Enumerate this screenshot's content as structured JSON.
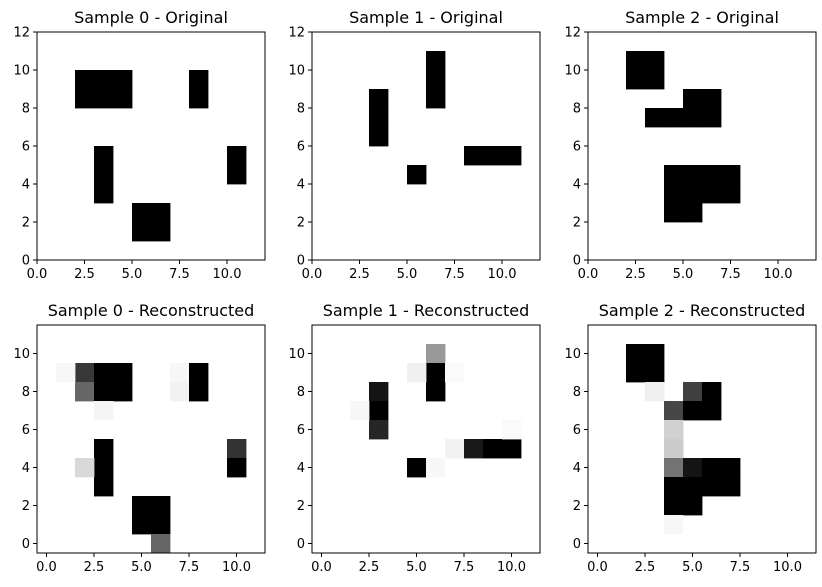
{
  "chart_data": [
    {
      "type": "heatmap",
      "title": "Sample 0 - Original",
      "xlim": [
        0,
        12
      ],
      "ylim": [
        0,
        12
      ],
      "xticks": [
        0,
        2.5,
        5,
        7.5,
        10
      ],
      "xtick_labels": [
        "0.0",
        "2.5",
        "5.0",
        "7.5",
        "10.0"
      ],
      "yticks": [
        0,
        2,
        4,
        6,
        8,
        10,
        12
      ],
      "ytick_labels": [
        "0",
        "2",
        "4",
        "6",
        "8",
        "10",
        "12"
      ],
      "grid": false,
      "cells": [
        {
          "x": 2,
          "y": 8,
          "v": 1
        },
        {
          "x": 2,
          "y": 9,
          "v": 1
        },
        {
          "x": 3,
          "y": 8,
          "v": 1
        },
        {
          "x": 3,
          "y": 9,
          "v": 1
        },
        {
          "x": 4,
          "y": 8,
          "v": 1
        },
        {
          "x": 4,
          "y": 9,
          "v": 1
        },
        {
          "x": 8,
          "y": 8,
          "v": 1
        },
        {
          "x": 8,
          "y": 9,
          "v": 1
        },
        {
          "x": 3,
          "y": 3,
          "v": 1
        },
        {
          "x": 3,
          "y": 4,
          "v": 1
        },
        {
          "x": 3,
          "y": 5,
          "v": 1
        },
        {
          "x": 10,
          "y": 4,
          "v": 1
        },
        {
          "x": 10,
          "y": 5,
          "v": 1
        },
        {
          "x": 5,
          "y": 1,
          "v": 1
        },
        {
          "x": 5,
          "y": 2,
          "v": 1
        },
        {
          "x": 6,
          "y": 1,
          "v": 1
        },
        {
          "x": 6,
          "y": 2,
          "v": 1
        }
      ]
    },
    {
      "type": "heatmap",
      "title": "Sample 1 - Original",
      "xlim": [
        0,
        12
      ],
      "ylim": [
        0,
        12
      ],
      "xticks": [
        0,
        2.5,
        5,
        7.5,
        10
      ],
      "xtick_labels": [
        "0.0",
        "2.5",
        "5.0",
        "7.5",
        "10.0"
      ],
      "yticks": [
        0,
        2,
        4,
        6,
        8,
        10,
        12
      ],
      "ytick_labels": [
        "0",
        "2",
        "4",
        "6",
        "8",
        "10",
        "12"
      ],
      "grid": false,
      "cells": [
        {
          "x": 6,
          "y": 8,
          "v": 1
        },
        {
          "x": 6,
          "y": 9,
          "v": 1
        },
        {
          "x": 6,
          "y": 10,
          "v": 1
        },
        {
          "x": 3,
          "y": 6,
          "v": 1
        },
        {
          "x": 3,
          "y": 7,
          "v": 1
        },
        {
          "x": 3,
          "y": 8,
          "v": 1
        },
        {
          "x": 8,
          "y": 5,
          "v": 1
        },
        {
          "x": 9,
          "y": 5,
          "v": 1
        },
        {
          "x": 10,
          "y": 5,
          "v": 1
        },
        {
          "x": 5,
          "y": 4,
          "v": 1
        }
      ]
    },
    {
      "type": "heatmap",
      "title": "Sample 2 - Original",
      "xlim": [
        0,
        12
      ],
      "ylim": [
        0,
        12
      ],
      "xticks": [
        0,
        2.5,
        5,
        7.5,
        10
      ],
      "xtick_labels": [
        "0.0",
        "2.5",
        "5.0",
        "7.5",
        "10.0"
      ],
      "yticks": [
        0,
        2,
        4,
        6,
        8,
        10,
        12
      ],
      "ytick_labels": [
        "0",
        "2",
        "4",
        "6",
        "8",
        "10",
        "12"
      ],
      "grid": false,
      "cells": [
        {
          "x": 2,
          "y": 9,
          "v": 1
        },
        {
          "x": 2,
          "y": 10,
          "v": 1
        },
        {
          "x": 3,
          "y": 9,
          "v": 1
        },
        {
          "x": 3,
          "y": 10,
          "v": 1
        },
        {
          "x": 3,
          "y": 7,
          "v": 1
        },
        {
          "x": 4,
          "y": 7,
          "v": 1
        },
        {
          "x": 5,
          "y": 7,
          "v": 1
        },
        {
          "x": 5,
          "y": 8,
          "v": 1
        },
        {
          "x": 6,
          "y": 7,
          "v": 1
        },
        {
          "x": 6,
          "y": 8,
          "v": 1
        },
        {
          "x": 4,
          "y": 2,
          "v": 1
        },
        {
          "x": 4,
          "y": 3,
          "v": 1
        },
        {
          "x": 4,
          "y": 4,
          "v": 1
        },
        {
          "x": 5,
          "y": 2,
          "v": 1
        },
        {
          "x": 5,
          "y": 3,
          "v": 1
        },
        {
          "x": 5,
          "y": 4,
          "v": 1
        },
        {
          "x": 6,
          "y": 3,
          "v": 1
        },
        {
          "x": 6,
          "y": 4,
          "v": 1
        },
        {
          "x": 7,
          "y": 3,
          "v": 1
        },
        {
          "x": 7,
          "y": 4,
          "v": 1
        }
      ]
    },
    {
      "type": "heatmap",
      "title": "Sample 0 - Reconstructed",
      "xlim": [
        -0.5,
        11.5
      ],
      "ylim": [
        -0.5,
        11.5
      ],
      "xticks": [
        0,
        2.5,
        5,
        7.5,
        10
      ],
      "xtick_labels": [
        "0.0",
        "2.5",
        "5.0",
        "7.5",
        "10.0"
      ],
      "yticks": [
        0,
        2,
        4,
        6,
        8,
        10
      ],
      "ytick_labels": [
        "0",
        "2",
        "4",
        "6",
        "8",
        "10"
      ],
      "grid": false,
      "cells": [
        {
          "x": 2,
          "y": 9,
          "v": 0.78
        },
        {
          "x": 2,
          "y": 8,
          "v": 0.6
        },
        {
          "x": 1,
          "y": 9,
          "v": 0.03
        },
        {
          "x": 3,
          "y": 9,
          "v": 1
        },
        {
          "x": 3,
          "y": 8,
          "v": 1
        },
        {
          "x": 4,
          "y": 9,
          "v": 1
        },
        {
          "x": 4,
          "y": 8,
          "v": 1
        },
        {
          "x": 7,
          "y": 9,
          "v": 0.03
        },
        {
          "x": 7,
          "y": 8,
          "v": 0.05
        },
        {
          "x": 8,
          "y": 9,
          "v": 1
        },
        {
          "x": 8,
          "y": 8,
          "v": 1
        },
        {
          "x": 3,
          "y": 7,
          "v": 0.04
        },
        {
          "x": 3,
          "y": 5,
          "v": 1
        },
        {
          "x": 3,
          "y": 4,
          "v": 1
        },
        {
          "x": 3,
          "y": 3,
          "v": 1
        },
        {
          "x": 2,
          "y": 4,
          "v": 0.15
        },
        {
          "x": 10,
          "y": 5,
          "v": 0.8
        },
        {
          "x": 10,
          "y": 4,
          "v": 1
        },
        {
          "x": 5,
          "y": 2,
          "v": 1
        },
        {
          "x": 5,
          "y": 1,
          "v": 1
        },
        {
          "x": 6,
          "y": 2,
          "v": 1
        },
        {
          "x": 6,
          "y": 1,
          "v": 1
        },
        {
          "x": 6,
          "y": 0,
          "v": 0.6
        }
      ]
    },
    {
      "type": "heatmap",
      "title": "Sample 1 - Reconstructed",
      "xlim": [
        -0.5,
        11.5
      ],
      "ylim": [
        -0.5,
        11.5
      ],
      "xticks": [
        0,
        2.5,
        5,
        7.5,
        10
      ],
      "xtick_labels": [
        "0.0",
        "2.5",
        "5.0",
        "7.5",
        "10.0"
      ],
      "yticks": [
        0,
        2,
        4,
        6,
        8,
        10
      ],
      "ytick_labels": [
        "0",
        "2",
        "4",
        "6",
        "8",
        "10"
      ],
      "grid": false,
      "cells": [
        {
          "x": 6,
          "y": 10,
          "v": 0.4
        },
        {
          "x": 6,
          "y": 9,
          "v": 1
        },
        {
          "x": 6,
          "y": 8,
          "v": 1
        },
        {
          "x": 5,
          "y": 9,
          "v": 0.06
        },
        {
          "x": 7,
          "y": 9,
          "v": 0.02
        },
        {
          "x": 3,
          "y": 8,
          "v": 0.92
        },
        {
          "x": 3,
          "y": 7,
          "v": 1
        },
        {
          "x": 3,
          "y": 6,
          "v": 0.85
        },
        {
          "x": 2,
          "y": 7,
          "v": 0.03
        },
        {
          "x": 7,
          "y": 5,
          "v": 0.05
        },
        {
          "x": 8,
          "y": 5,
          "v": 0.9
        },
        {
          "x": 9,
          "y": 5,
          "v": 1
        },
        {
          "x": 10,
          "y": 5,
          "v": 1
        },
        {
          "x": 10,
          "y": 6,
          "v": 0.02
        },
        {
          "x": 5,
          "y": 4,
          "v": 1
        },
        {
          "x": 6,
          "y": 4,
          "v": 0.03
        }
      ]
    },
    {
      "type": "heatmap",
      "title": "Sample 2 - Reconstructed",
      "xlim": [
        -0.5,
        11.5
      ],
      "ylim": [
        -0.5,
        11.5
      ],
      "xticks": [
        0,
        2.5,
        5,
        7.5,
        10
      ],
      "xtick_labels": [
        "0.0",
        "2.5",
        "5.0",
        "7.5",
        "10.0"
      ],
      "yticks": [
        0,
        2,
        4,
        6,
        8,
        10
      ],
      "ytick_labels": [
        "0",
        "2",
        "4",
        "6",
        "8",
        "10"
      ],
      "grid": false,
      "cells": [
        {
          "x": 2,
          "y": 10,
          "v": 1
        },
        {
          "x": 2,
          "y": 9,
          "v": 1
        },
        {
          "x": 3,
          "y": 10,
          "v": 1
        },
        {
          "x": 3,
          "y": 9,
          "v": 1
        },
        {
          "x": 3,
          "y": 8,
          "v": 0.06
        },
        {
          "x": 5,
          "y": 8,
          "v": 0.75
        },
        {
          "x": 6,
          "y": 8,
          "v": 1
        },
        {
          "x": 4,
          "y": 7,
          "v": 0.72
        },
        {
          "x": 5,
          "y": 7,
          "v": 1
        },
        {
          "x": 6,
          "y": 7,
          "v": 1
        },
        {
          "x": 4,
          "y": 6,
          "v": 0.18
        },
        {
          "x": 4,
          "y": 5,
          "v": 0.2
        },
        {
          "x": 4,
          "y": 4,
          "v": 0.55
        },
        {
          "x": 5,
          "y": 4,
          "v": 0.92
        },
        {
          "x": 6,
          "y": 4,
          "v": 1
        },
        {
          "x": 7,
          "y": 4,
          "v": 1
        },
        {
          "x": 4,
          "y": 3,
          "v": 1
        },
        {
          "x": 5,
          "y": 3,
          "v": 1
        },
        {
          "x": 6,
          "y": 3,
          "v": 1
        },
        {
          "x": 7,
          "y": 3,
          "v": 1
        },
        {
          "x": 4,
          "y": 2,
          "v": 1
        },
        {
          "x": 5,
          "y": 2,
          "v": 1
        },
        {
          "x": 4,
          "y": 1,
          "v": 0.03
        }
      ]
    }
  ]
}
